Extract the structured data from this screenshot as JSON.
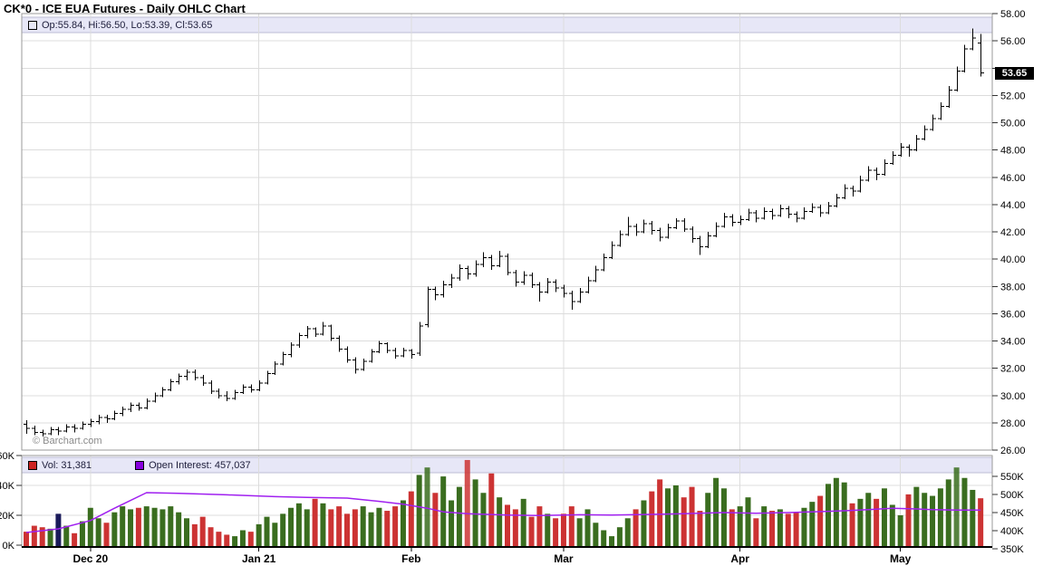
{
  "window": {
    "title": "CK*0 - ICE EUA Futures - Daily OHLC Chart"
  },
  "watermark": "© Barchart.com",
  "price_panel": {
    "legend_label": "Op:55.84, Hi:56.50, Lo:53.39, Cl:53.65",
    "legend_marker_color": "#000000",
    "last_price": "53.65",
    "tick_labels": [
      "58.00",
      "56.00",
      "52.00",
      "50.00",
      "48.00",
      "46.00",
      "44.00",
      "42.00",
      "40.00",
      "38.00",
      "36.00",
      "34.00",
      "32.00",
      "30.00",
      "28.00",
      "26.00"
    ]
  },
  "volume_panel": {
    "vol_legend_label": "Vol: 31,381",
    "vol_marker_color": "#cc2222",
    "oi_legend_label": "Open Interest: 457,037",
    "oi_marker_color": "#8800dd",
    "left_tick_labels": [
      "60K",
      "40K",
      "20K",
      "0K"
    ],
    "right_tick_labels": [
      "550K",
      "500K",
      "450K",
      "400K",
      "350K"
    ]
  },
  "chart_data": {
    "type": "ohlc",
    "title": "CK*0 - ICE EUA Futures - Daily OHLC Chart",
    "price_axis": {
      "min": 26,
      "max": 58,
      "step": 2,
      "side": "right"
    },
    "volume_axis": {
      "min": 0,
      "max": 60,
      "step": 20,
      "unit": "K",
      "side": "left"
    },
    "open_interest_axis": {
      "min": 350,
      "max": 550,
      "step": 50,
      "unit": "K",
      "side": "right"
    },
    "last_price": 53.65,
    "last_volume": 31381,
    "last_open_interest": 457037,
    "month_labels": [
      {
        "label": "Dec 20",
        "bar_index": 8
      },
      {
        "label": "Jan 21",
        "bar_index": 29
      },
      {
        "label": "Feb",
        "bar_index": 48
      },
      {
        "label": "Mar",
        "bar_index": 67
      },
      {
        "label": "Apr",
        "bar_index": 89
      },
      {
        "label": "May",
        "bar_index": 109
      }
    ],
    "bars": [
      [
        27.9,
        28.2,
        27.2,
        27.6
      ],
      [
        27.6,
        27.8,
        27.1,
        27.3
      ],
      [
        27.3,
        27.5,
        27.0,
        27.2
      ],
      [
        27.2,
        27.7,
        27.1,
        27.5
      ],
      [
        27.5,
        27.7,
        27.1,
        27.4
      ],
      [
        27.4,
        27.9,
        27.3,
        27.7
      ],
      [
        27.7,
        27.9,
        27.3,
        27.6
      ],
      [
        27.6,
        28.1,
        27.5,
        27.9
      ],
      [
        27.9,
        28.3,
        27.7,
        28.1
      ],
      [
        28.1,
        28.6,
        27.9,
        28.4
      ],
      [
        28.4,
        28.6,
        28.0,
        28.3
      ],
      [
        28.3,
        28.9,
        28.2,
        28.7
      ],
      [
        28.7,
        29.2,
        28.5,
        29.0
      ],
      [
        29.0,
        29.5,
        28.8,
        29.3
      ],
      [
        29.3,
        29.5,
        28.9,
        29.1
      ],
      [
        29.1,
        29.8,
        29.0,
        29.6
      ],
      [
        29.6,
        30.2,
        29.5,
        30.0
      ],
      [
        30.0,
        30.6,
        29.9,
        30.4
      ],
      [
        30.4,
        31.2,
        30.3,
        31.0
      ],
      [
        31.0,
        31.6,
        30.8,
        31.4
      ],
      [
        31.4,
        31.9,
        31.1,
        31.7
      ],
      [
        31.7,
        31.9,
        31.1,
        31.3
      ],
      [
        31.3,
        31.5,
        30.7,
        30.9
      ],
      [
        30.9,
        31.1,
        30.1,
        30.3
      ],
      [
        30.3,
        30.5,
        29.8,
        30.0
      ],
      [
        30.0,
        30.3,
        29.6,
        29.8
      ],
      [
        29.8,
        30.4,
        29.7,
        30.2
      ],
      [
        30.2,
        30.8,
        30.1,
        30.6
      ],
      [
        30.6,
        30.8,
        30.2,
        30.4
      ],
      [
        30.4,
        31.1,
        30.3,
        30.9
      ],
      [
        30.9,
        31.8,
        30.8,
        31.6
      ],
      [
        31.6,
        32.5,
        31.5,
        32.3
      ],
      [
        32.3,
        33.2,
        32.2,
        33.0
      ],
      [
        33.0,
        33.9,
        32.8,
        33.7
      ],
      [
        33.7,
        34.6,
        33.5,
        34.4
      ],
      [
        34.4,
        35.1,
        34.2,
        34.9
      ],
      [
        34.9,
        35.0,
        34.3,
        34.5
      ],
      [
        34.5,
        35.4,
        34.4,
        35.1
      ],
      [
        35.1,
        35.2,
        34.0,
        34.2
      ],
      [
        34.2,
        34.4,
        33.2,
        33.4
      ],
      [
        33.4,
        33.6,
        32.4,
        32.6
      ],
      [
        32.6,
        32.8,
        31.6,
        31.9
      ],
      [
        31.9,
        32.7,
        31.8,
        32.5
      ],
      [
        32.5,
        33.4,
        32.4,
        33.2
      ],
      [
        33.2,
        34.0,
        33.1,
        33.8
      ],
      [
        33.8,
        33.9,
        33.1,
        33.3
      ],
      [
        33.3,
        33.5,
        32.7,
        32.9
      ],
      [
        32.9,
        33.5,
        32.8,
        33.3
      ],
      [
        33.3,
        33.4,
        32.7,
        33.0
      ],
      [
        33.1,
        35.4,
        32.9,
        35.1
      ],
      [
        35.2,
        38.0,
        35.0,
        37.8
      ],
      [
        37.8,
        38.0,
        37.0,
        37.4
      ],
      [
        37.4,
        38.4,
        37.2,
        38.1
      ],
      [
        38.1,
        38.9,
        37.9,
        38.6
      ],
      [
        38.6,
        39.6,
        38.4,
        39.3
      ],
      [
        39.3,
        39.5,
        38.5,
        38.9
      ],
      [
        38.9,
        39.9,
        38.7,
        39.6
      ],
      [
        39.6,
        40.5,
        39.4,
        40.1
      ],
      [
        40.1,
        40.3,
        39.2,
        39.5
      ],
      [
        39.5,
        40.6,
        39.4,
        40.2
      ],
      [
        40.2,
        40.4,
        38.8,
        39.0
      ],
      [
        39.0,
        39.2,
        38.0,
        38.3
      ],
      [
        38.3,
        39.1,
        38.1,
        38.8
      ],
      [
        38.8,
        39.0,
        37.9,
        38.1
      ],
      [
        38.1,
        38.3,
        36.9,
        37.6
      ],
      [
        37.6,
        38.6,
        37.5,
        38.3
      ],
      [
        38.3,
        38.5,
        37.6,
        37.9
      ],
      [
        37.9,
        38.1,
        37.2,
        37.5
      ],
      [
        37.5,
        37.7,
        36.3,
        36.9
      ],
      [
        36.9,
        37.9,
        36.8,
        37.6
      ],
      [
        37.6,
        38.7,
        37.5,
        38.4
      ],
      [
        38.4,
        39.5,
        38.3,
        39.2
      ],
      [
        39.2,
        40.4,
        39.1,
        40.1
      ],
      [
        40.1,
        41.3,
        40.0,
        41.0
      ],
      [
        41.0,
        42.1,
        40.9,
        41.8
      ],
      [
        41.8,
        43.1,
        41.7,
        42.4
      ],
      [
        42.4,
        42.6,
        41.7,
        42.0
      ],
      [
        42.0,
        42.9,
        41.9,
        42.6
      ],
      [
        42.6,
        42.8,
        41.8,
        42.1
      ],
      [
        42.1,
        42.3,
        41.3,
        41.6
      ],
      [
        41.6,
        42.6,
        41.5,
        42.3
      ],
      [
        42.3,
        43.0,
        42.2,
        42.8
      ],
      [
        42.8,
        43.0,
        42.0,
        42.2
      ],
      [
        42.2,
        42.4,
        41.2,
        41.5
      ],
      [
        41.5,
        41.7,
        40.3,
        40.9
      ],
      [
        40.9,
        42.0,
        40.8,
        41.7
      ],
      [
        41.7,
        42.7,
        41.6,
        42.4
      ],
      [
        42.4,
        43.4,
        42.3,
        43.1
      ],
      [
        43.1,
        43.3,
        42.4,
        42.7
      ],
      [
        42.7,
        43.2,
        42.5,
        42.9
      ],
      [
        42.9,
        43.7,
        42.8,
        43.4
      ],
      [
        43.4,
        43.6,
        42.7,
        43.0
      ],
      [
        43.0,
        43.8,
        42.9,
        43.5
      ],
      [
        43.5,
        43.7,
        42.9,
        43.2
      ],
      [
        43.2,
        44.0,
        43.1,
        43.7
      ],
      [
        43.7,
        43.9,
        43.0,
        43.3
      ],
      [
        43.3,
        43.5,
        42.7,
        43.0
      ],
      [
        43.0,
        43.8,
        42.9,
        43.5
      ],
      [
        43.5,
        44.1,
        43.4,
        43.8
      ],
      [
        43.8,
        44.0,
        43.1,
        43.4
      ],
      [
        43.4,
        44.2,
        43.3,
        43.9
      ],
      [
        43.9,
        44.8,
        43.8,
        44.5
      ],
      [
        44.5,
        45.5,
        44.4,
        45.2
      ],
      [
        45.2,
        45.4,
        44.6,
        45.0
      ],
      [
        45.0,
        46.1,
        44.9,
        45.8
      ],
      [
        45.8,
        46.8,
        45.7,
        46.5
      ],
      [
        46.5,
        46.7,
        45.8,
        46.2
      ],
      [
        46.2,
        47.3,
        46.1,
        47.0
      ],
      [
        47.0,
        47.9,
        46.9,
        47.6
      ],
      [
        47.6,
        48.5,
        47.5,
        48.2
      ],
      [
        48.2,
        48.4,
        47.5,
        48.0
      ],
      [
        48.0,
        49.1,
        47.9,
        48.8
      ],
      [
        48.8,
        49.8,
        48.7,
        49.5
      ],
      [
        49.5,
        50.6,
        49.4,
        50.3
      ],
      [
        50.3,
        51.5,
        50.2,
        51.2
      ],
      [
        51.2,
        52.7,
        51.1,
        52.4
      ],
      [
        52.4,
        54.1,
        52.3,
        53.8
      ],
      [
        53.8,
        55.7,
        53.7,
        55.4
      ],
      [
        55.4,
        56.9,
        55.3,
        56.2
      ],
      [
        55.84,
        56.5,
        53.39,
        53.65
      ]
    ],
    "volumes_k": [
      9,
      13,
      12,
      11,
      21,
      13,
      8,
      16,
      25,
      18,
      15,
      22,
      26,
      24,
      25,
      26,
      25,
      24,
      26,
      22,
      18,
      14,
      19,
      12,
      9,
      7,
      6,
      10,
      9,
      14,
      19,
      15,
      21,
      25,
      28,
      24,
      31,
      28,
      24,
      26,
      21,
      24,
      26,
      22,
      25,
      23,
      26,
      30,
      36,
      47,
      52,
      35,
      46,
      30,
      39,
      57,
      44,
      35,
      48,
      32,
      27,
      24,
      31,
      19,
      26,
      21,
      18,
      21,
      26,
      18,
      24,
      15,
      10,
      6,
      12,
      18,
      24,
      30,
      36,
      44,
      38,
      40,
      32,
      39,
      23,
      35,
      45,
      38,
      24,
      26,
      32,
      18,
      26,
      23,
      24,
      21,
      22,
      25,
      29,
      33,
      41,
      45,
      42,
      28,
      31,
      35,
      31,
      38,
      27,
      20,
      34,
      39,
      35,
      33,
      38,
      44,
      52,
      45,
      37,
      31.4
    ],
    "volume_navy_indexes": [
      4
    ],
    "open_interest_k": [
      [
        0,
        395
      ],
      [
        4,
        405
      ],
      [
        8,
        428
      ],
      [
        11,
        462
      ],
      [
        15,
        505
      ],
      [
        19,
        503
      ],
      [
        25,
        499
      ],
      [
        31,
        494
      ],
      [
        35,
        492
      ],
      [
        40,
        490
      ],
      [
        44,
        481
      ],
      [
        47,
        473
      ],
      [
        50,
        462
      ],
      [
        52,
        452
      ],
      [
        55,
        447
      ],
      [
        60,
        443
      ],
      [
        64,
        442
      ],
      [
        69,
        444
      ],
      [
        73,
        443
      ],
      [
        78,
        445
      ],
      [
        82,
        447
      ],
      [
        87,
        450
      ],
      [
        91,
        448
      ],
      [
        95,
        450
      ],
      [
        98,
        452
      ],
      [
        102,
        455
      ],
      [
        105,
        458
      ],
      [
        108,
        462
      ],
      [
        111,
        460
      ],
      [
        113,
        458
      ],
      [
        116,
        457
      ],
      [
        119,
        457
      ]
    ],
    "colors": {
      "bar_outline": "#000000",
      "volume_up": "#3a6d1f",
      "volume_down": "#cc3333",
      "volume_navy": "#1a1a5a",
      "oi_line": "#a020f0",
      "grid": "#dcdcdc",
      "frame": "#999999",
      "axis_line": "#000000",
      "legend_strip_bg": "#e7e7f7",
      "legend_strip_border": "#bdbdd4"
    }
  }
}
